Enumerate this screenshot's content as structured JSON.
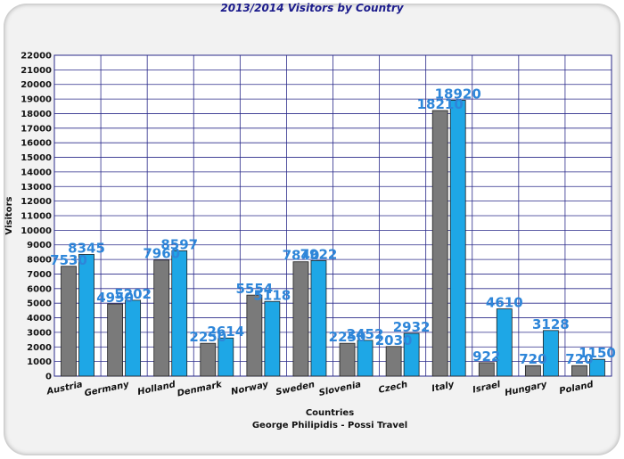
{
  "chart_data": {
    "type": "bar",
    "title": "2013/2014 Visitors by Country",
    "xlabel": "Countries",
    "subtitle": "George Philipidis - Possi Travel",
    "ylabel": "Visitors",
    "ylim": [
      0,
      22000
    ],
    "ytick_step": 1000,
    "grid": true,
    "categories": [
      "Austria",
      "Germany",
      "Holland",
      "Denmark",
      "Norway",
      "Sweden",
      "Slovenia",
      "Czech",
      "Italy",
      "Israel",
      "Hungary",
      "Poland"
    ],
    "series": [
      {
        "values": [
          7530,
          4950,
          7960,
          2250,
          5554,
          7840,
          2250,
          2030,
          18210,
          922,
          720,
          720
        ],
        "color": "#7a7a7a"
      },
      {
        "values": [
          8345,
          5202,
          8597,
          2614,
          5118,
          7922,
          2452,
          2932,
          18920,
          4610,
          3128,
          1150
        ],
        "color": "#1ea7e6"
      }
    ]
  }
}
